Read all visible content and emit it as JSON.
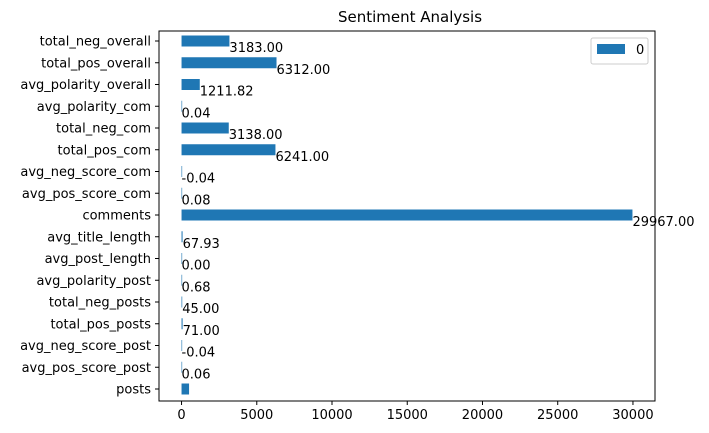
{
  "chart_data": {
    "type": "bar",
    "orientation": "horizontal",
    "title": "Sentiment Analysis",
    "xlabel": "",
    "ylabel": "",
    "xlim": [
      -1498,
      31465
    ],
    "x_ticks": [
      0,
      5000,
      10000,
      15000,
      20000,
      25000,
      30000
    ],
    "x_tick_labels": [
      "0",
      "5000",
      "10000",
      "15000",
      "20000",
      "25000",
      "30000"
    ],
    "bar_color": "#1f77b4",
    "legend": {
      "position": "top-right",
      "entries": [
        "0"
      ]
    },
    "categories_top_to_bottom": [
      "total_neg_overall",
      "total_pos_overall",
      "avg_polarity_overall",
      "avg_polarity_com",
      "total_neg_com",
      "total_pos_com",
      "avg_neg_score_com",
      "avg_pos_score_com",
      "comments",
      "avg_title_length",
      "avg_post_length",
      "avg_polarity_post",
      "total_neg_posts",
      "total_pos_posts",
      "avg_neg_score_post",
      "avg_pos_score_post",
      "posts"
    ],
    "series": [
      {
        "name": "0",
        "values": [
          3183.0,
          6312.0,
          1211.82,
          0.04,
          3138.0,
          6241.0,
          -0.04,
          0.08,
          29967.0,
          67.93,
          0.0,
          0.68,
          45.0,
          71.0,
          -0.04,
          0.06,
          500
        ]
      }
    ],
    "value_labels": [
      "3183.00",
      "6312.00",
      "1211.82",
      "0.04",
      "3138.00",
      "6241.00",
      "-0.04",
      "0.08",
      "29967.00",
      "67.93",
      "0.00",
      "0.68",
      "45.00",
      "71.00",
      "-0.04",
      "0.06",
      ""
    ]
  }
}
